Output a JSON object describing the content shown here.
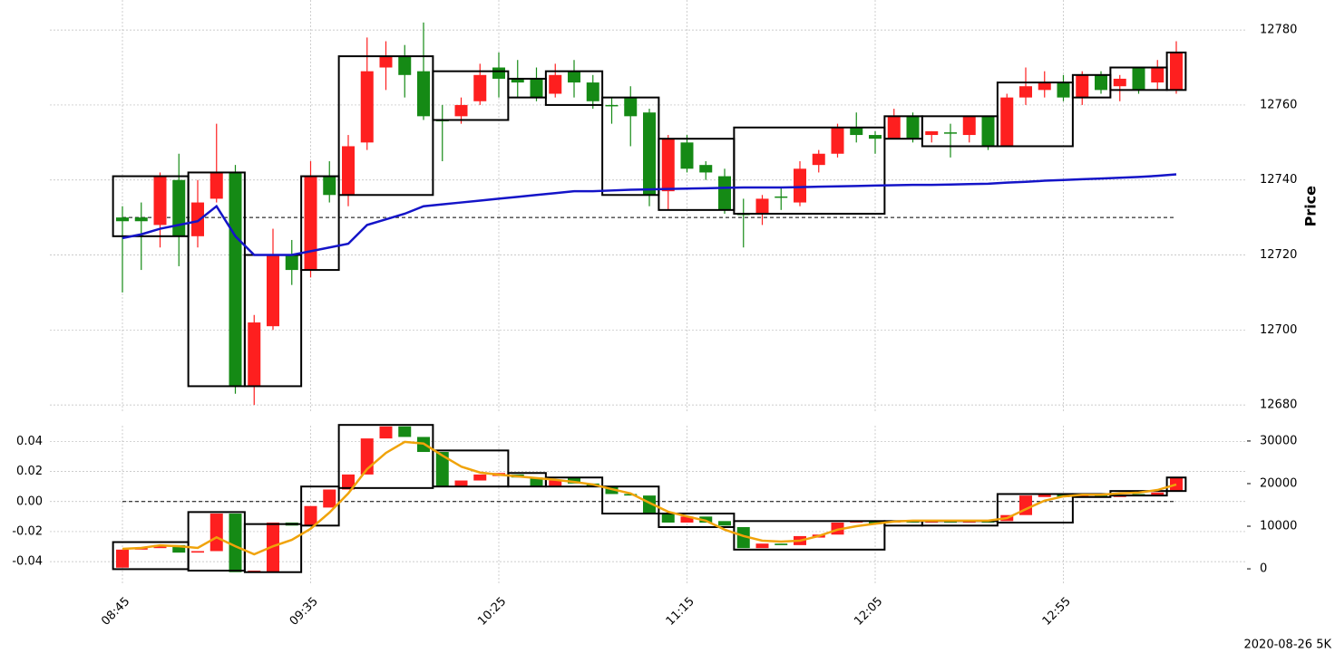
{
  "chart_data": [
    {
      "type": "candlestick",
      "ylabel": "Price",
      "grid": true,
      "yaxis": "right",
      "up_color": "#fe1f1f",
      "down_color": "#158a15",
      "ylim": [
        12678,
        12788
      ],
      "yticks": [
        12680,
        12700,
        12720,
        12740,
        12760,
        12780
      ],
      "hline": 12730,
      "open": [
        12730,
        12730,
        12728,
        12740,
        12725,
        12735,
        12742,
        12685,
        12701,
        12720,
        12716,
        12741,
        12736,
        12750,
        12770,
        12773,
        12769,
        12756,
        12757,
        12761,
        12770,
        12767,
        12767,
        12763,
        12769,
        12766,
        12760,
        12762,
        12758,
        12737,
        12750,
        12744,
        12741,
        12731,
        12731,
        12735.6,
        12734,
        12744,
        12747,
        12754,
        12752,
        12751,
        12757,
        12752,
        12752.7,
        12752,
        12757,
        12749,
        12762,
        12764,
        12766,
        12762,
        12768,
        12765,
        12770,
        12766,
        12764
      ],
      "high": [
        12733,
        12734,
        12742,
        12747,
        12740,
        12755,
        12744,
        12704,
        12727,
        12724,
        12745,
        12745,
        12752,
        12778,
        12777,
        12776,
        12782,
        12760,
        12762,
        12771,
        12774,
        12772,
        12770,
        12771,
        12772,
        12768,
        12762,
        12765,
        12759,
        12752,
        12752,
        12745,
        12743,
        12735,
        12736,
        12738,
        12745,
        12748,
        12755,
        12758,
        12753,
        12759,
        12758,
        12753,
        12755,
        12757,
        12757,
        12763,
        12770,
        12769,
        12768,
        12769,
        12769,
        12768,
        12770,
        12772,
        12777
      ],
      "low": [
        12710,
        12716,
        12722,
        12717,
        12722,
        12734,
        12683,
        12680,
        12700,
        12712,
        12714,
        12734,
        12733,
        12748,
        12764,
        12762,
        12756,
        12745,
        12755,
        12760,
        12762,
        12762,
        12761,
        12762,
        12762,
        12759,
        12755,
        12749,
        12733,
        12732,
        12742,
        12740,
        12731,
        12722,
        12728,
        12732,
        12733,
        12742,
        12746,
        12750,
        12747,
        12751,
        12750,
        12750,
        12746,
        12750,
        12748,
        12749,
        12760,
        12762,
        12761,
        12760,
        12763,
        12761,
        12763,
        12764,
        12763
      ],
      "close": [
        12729,
        12729,
        12741,
        12725,
        12734,
        12742,
        12685,
        12702,
        12720,
        12716,
        12741,
        12736,
        12749,
        12769,
        12773,
        12768,
        12757,
        12756,
        12760,
        12768,
        12767,
        12766,
        12762,
        12768,
        12766,
        12761,
        12760,
        12757,
        12736,
        12751,
        12743,
        12742,
        12732,
        12731,
        12735,
        12735.6,
        12743,
        12747,
        12754,
        12752,
        12751,
        12757,
        12751,
        12753,
        12752.7,
        12757,
        12749,
        12762,
        12765,
        12766,
        12762,
        12768,
        12764,
        12767,
        12764,
        12770,
        12774
      ],
      "boxes": [
        {
          "start": 0,
          "end": 3,
          "high": 12741,
          "low": 12725
        },
        {
          "start": 4,
          "end": 6,
          "high": 12742,
          "low": 12685
        },
        {
          "start": 7,
          "end": 9,
          "high": 12720,
          "low": 12685
        },
        {
          "start": 10,
          "end": 11,
          "high": 12741,
          "low": 12716
        },
        {
          "start": 12,
          "end": 16,
          "high": 12773,
          "low": 12736
        },
        {
          "start": 17,
          "end": 20,
          "high": 12769,
          "low": 12756
        },
        {
          "start": 21,
          "end": 22,
          "high": 12767,
          "low": 12762
        },
        {
          "start": 23,
          "end": 25,
          "high": 12769,
          "low": 12760
        },
        {
          "start": 26,
          "end": 28,
          "high": 12762,
          "low": 12736
        },
        {
          "start": 29,
          "end": 32,
          "high": 12751,
          "low": 12732
        },
        {
          "start": 33,
          "end": 40,
          "high": 12754,
          "low": 12731
        },
        {
          "start": 41,
          "end": 42,
          "high": 12757,
          "low": 12751
        },
        {
          "start": 43,
          "end": 46,
          "high": 12757,
          "low": 12749
        },
        {
          "start": 47,
          "end": 50,
          "high": 12766,
          "low": 12749
        },
        {
          "start": 51,
          "end": 52,
          "high": 12768,
          "low": 12762
        },
        {
          "start": 53,
          "end": 55,
          "high": 12770,
          "low": 12764
        },
        {
          "start": 56,
          "end": 56,
          "high": 12774,
          "low": 12764
        }
      ],
      "lines": [
        {
          "color": "#1414c8",
          "values": [
            12724.5,
            12725.5,
            12727,
            12728,
            12729,
            12733,
            12725,
            12720,
            12720,
            12720,
            12721,
            12722,
            12723,
            12728,
            12729.5,
            12731,
            12733,
            12733.5,
            12734,
            12734.5,
            12735,
            12735.5,
            12736,
            12736.5,
            12737,
            12737,
            12737.2,
            12737.4,
            12737.5,
            12737.6,
            12737.7,
            12737.8,
            12737.9,
            12738,
            12738,
            12738,
            12738.1,
            12738.2,
            12738.3,
            12738.4,
            12738.5,
            12738.6,
            12738.7,
            12738.7,
            12738.8,
            12738.9,
            12739,
            12739.3,
            12739.5,
            12739.8,
            12740,
            12740.2,
            12740.4,
            12740.6,
            12740.8,
            12741.1,
            12741.5
          ]
        }
      ]
    },
    {
      "type": "candlestick",
      "grid": true,
      "yaxis": "left",
      "up_color": "#fe1f1f",
      "down_color": "#158a15",
      "categories": [
        "08:45",
        null,
        null,
        null,
        null,
        null,
        null,
        null,
        null,
        null,
        "09:35",
        null,
        null,
        null,
        null,
        null,
        null,
        null,
        null,
        null,
        "10:25",
        null,
        null,
        null,
        null,
        null,
        null,
        null,
        null,
        null,
        "11:15",
        null,
        null,
        null,
        null,
        null,
        null,
        null,
        null,
        null,
        "12:05",
        null,
        null,
        null,
        null,
        null,
        null,
        null,
        null,
        null,
        "12:55",
        null,
        null,
        null,
        null,
        null,
        null
      ],
      "ylim": [
        -0.055,
        0.0505
      ],
      "yticks": [
        -0.04,
        -0.02,
        {
          "value": 0,
          "label": "0.00"
        },
        0.02,
        0.04
      ],
      "y2lim": [
        -3600,
        33600
      ],
      "y2ticks": [
        0,
        10000,
        20000,
        30000
      ],
      "hline": 0,
      "open": [
        -0.044,
        -0.032,
        -0.031,
        -0.029,
        -0.034,
        -0.033,
        -0.008,
        -0.047,
        -0.047,
        -0.014,
        -0.016,
        -0.004,
        0.008,
        0.018,
        0.042,
        0.05,
        0.043,
        0.033,
        0.01,
        0.014,
        0.017,
        0.018,
        0.016,
        0.01,
        0.016,
        0.012,
        0.01,
        0.005,
        0.004,
        -0.008,
        -0.014,
        -0.01,
        -0.013,
        -0.017,
        -0.031,
        -0.028,
        -0.029,
        -0.024,
        -0.022,
        -0.014,
        -0.013,
        -0.014,
        -0.013,
        -0.014,
        -0.013,
        -0.014,
        -0.013,
        -0.013,
        -0.009,
        0.003,
        0.005,
        0.003,
        0.004,
        0.003,
        0.005,
        0.004,
        0.007
      ],
      "close": [
        -0.032,
        -0.031,
        -0.029,
        -0.034,
        -0.033,
        -0.008,
        -0.047,
        -0.046,
        -0.014,
        -0.016,
        -0.003,
        0.008,
        0.018,
        0.042,
        0.05,
        0.043,
        0.033,
        0.01,
        0.014,
        0.018,
        0.019,
        0.016,
        0.01,
        0.014,
        0.012,
        0.01,
        0.005,
        0.004,
        -0.008,
        -0.014,
        -0.01,
        -0.014,
        -0.016,
        -0.031,
        -0.028,
        -0.029,
        -0.023,
        -0.022,
        -0.014,
        -0.013,
        -0.015,
        -0.013,
        -0.014,
        -0.013,
        -0.014,
        -0.013,
        -0.014,
        -0.009,
        0.004,
        0.005,
        0.003,
        0.004,
        0.003,
        0.004,
        0.004,
        0.006,
        0.016
      ],
      "boxes": [
        {
          "start": 0,
          "end": 3,
          "high": -0.027,
          "low": -0.045
        },
        {
          "start": 4,
          "end": 6,
          "high": -0.007,
          "low": -0.046
        },
        {
          "start": 7,
          "end": 9,
          "high": -0.015,
          "low": -0.047
        },
        {
          "start": 10,
          "end": 11,
          "high": 0.01,
          "low": -0.016
        },
        {
          "start": 12,
          "end": 16,
          "high": 0.051,
          "low": 0.009
        },
        {
          "start": 17,
          "end": 20,
          "high": 0.034,
          "low": 0.01
        },
        {
          "start": 21,
          "end": 22,
          "high": 0.019,
          "low": 0.01
        },
        {
          "start": 23,
          "end": 25,
          "high": 0.016,
          "low": 0.01
        },
        {
          "start": 26,
          "end": 28,
          "high": 0.01,
          "low": -0.008
        },
        {
          "start": 29,
          "end": 32,
          "high": -0.008,
          "low": -0.017
        },
        {
          "start": 33,
          "end": 40,
          "high": -0.013,
          "low": -0.032
        },
        {
          "start": 41,
          "end": 42,
          "high": -0.013,
          "low": -0.016
        },
        {
          "start": 43,
          "end": 46,
          "high": -0.013,
          "low": -0.016
        },
        {
          "start": 47,
          "end": 50,
          "high": 0.005,
          "low": -0.014
        },
        {
          "start": 51,
          "end": 52,
          "high": 0.005,
          "low": 0.003
        },
        {
          "start": 53,
          "end": 55,
          "high": 0.007,
          "low": 0.004
        },
        {
          "start": 56,
          "end": 56,
          "high": 0.016,
          "low": 0.007
        }
      ],
      "lines": [
        {
          "color": "#f0a30a",
          "axis": "y2",
          "values": [
            4700,
            4900,
            5500,
            5300,
            4900,
            7400,
            5300,
            3400,
            5300,
            6800,
            9400,
            13200,
            17700,
            23400,
            27200,
            29800,
            29400,
            26600,
            24000,
            22600,
            22100,
            21700,
            21300,
            20900,
            20400,
            19800,
            18700,
            17700,
            15500,
            13400,
            12300,
            11300,
            9200,
            7700,
            6600,
            6400,
            6600,
            7700,
            9200,
            10000,
            10600,
            11100,
            11300,
            11300,
            11300,
            11300,
            11300,
            11900,
            14000,
            16000,
            17000,
            17400,
            17400,
            17700,
            17900,
            18500,
            19800
          ]
        }
      ]
    }
  ],
  "footer": "2020-08-26 5K"
}
